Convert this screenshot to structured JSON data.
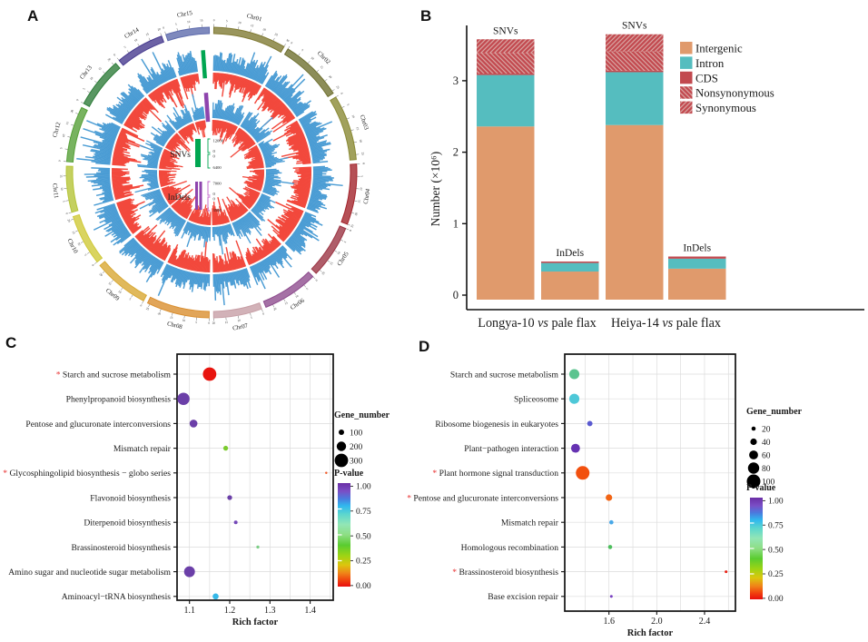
{
  "figure": {
    "panel_labels": {
      "a": "A",
      "b": "B",
      "c": "C",
      "d": "D"
    }
  },
  "chart_data": [
    {
      "id": "A",
      "type": "circos",
      "description": "Circular genome plot of SNV and InDel density across 15 flax chromosomes; outer blue histograms point outward, red histograms point inward, for SNVs (outer pair) and InDels (inner pair)",
      "chromosomes": [
        {
          "name": "Chr01",
          "size": 30,
          "color": "#807A33"
        },
        {
          "name": "Chr02",
          "size": 26,
          "color": "#6F7030"
        },
        {
          "name": "Chr03",
          "size": 27,
          "color": "#8A8A35"
        },
        {
          "name": "Chr04",
          "size": 25,
          "color": "#A3242C"
        },
        {
          "name": "Chr05",
          "size": 22,
          "color": "#9B3544"
        },
        {
          "name": "Chr06",
          "size": 23,
          "color": "#8E4D8E"
        },
        {
          "name": "Chr07",
          "size": 20,
          "color": "#C79FA6"
        },
        {
          "name": "Chr08",
          "size": 26,
          "color": "#D98E2F"
        },
        {
          "name": "Chr09",
          "size": 23,
          "color": "#D8A833"
        },
        {
          "name": "Chr10",
          "size": 21,
          "color": "#CFC938"
        },
        {
          "name": "Chr11",
          "size": 19,
          "color": "#B5C437"
        },
        {
          "name": "Chr12",
          "size": 23,
          "color": "#56A038"
        },
        {
          "name": "Chr13",
          "size": 21,
          "color": "#2F7D3B"
        },
        {
          "name": "Chr14",
          "size": 20,
          "color": "#473B8F"
        },
        {
          "name": "Chr15",
          "size": 18,
          "color": "#5E6BAD"
        }
      ],
      "track_colors": {
        "blue": "#4A9CD4",
        "red": "#F2483C"
      },
      "center_legend": {
        "snv": {
          "label": "SNVs",
          "color": "#00A651",
          "bracket_color": "#00A651",
          "scale_up": [
            "12000",
            "0"
          ],
          "scale_down": [
            "0",
            "6400"
          ]
        },
        "indel": {
          "label": "InDels",
          "color": "#8E44AD",
          "bracket_color": "#C060C8",
          "scale_up": [
            "7000",
            "0"
          ],
          "scale_down": [
            "0",
            "3500"
          ]
        }
      }
    },
    {
      "id": "B",
      "type": "bar",
      "stacked": true,
      "ylabel": "Number (×10⁶)",
      "yticks": [
        "0",
        "1",
        "2",
        "3"
      ],
      "ylim": [
        0,
        3.8
      ],
      "legend": [
        "Intergenic",
        "Intron",
        "CDS",
        "Nonsynonymous",
        "Synonymous"
      ],
      "colors": {
        "Intergenic": "#E09A6C",
        "Intron": "#55BDBF",
        "CDS": "#C2494F",
        "Nonsynonymous": "#C2494F",
        "Synonymous": "#C2494F"
      },
      "hatch": {
        "Nonsynonymous": "\\",
        "Synonymous": "/"
      },
      "group_labels": [
        "Longya-10 vs pale flax",
        "Heiya-14 vs pale flax"
      ],
      "bars": [
        {
          "label": "SNVs",
          "group": 0,
          "segments": [
            [
              "Intergenic",
              2.36
            ],
            [
              "Intron",
              0.72
            ],
            [
              "CDS",
              0.02
            ],
            [
              "Nonsynonymous",
              0.29
            ],
            [
              "Synonymous",
              0.19
            ]
          ]
        },
        {
          "label": "InDels",
          "group": 0,
          "segments": [
            [
              "Intergenic",
              0.33
            ],
            [
              "Intron",
              0.12
            ],
            [
              "CDS",
              0.02
            ]
          ]
        },
        {
          "label": "SNVs",
          "group": 1,
          "segments": [
            [
              "Intergenic",
              2.38
            ],
            [
              "Intron",
              0.74
            ],
            [
              "CDS",
              0.02
            ],
            [
              "Nonsynonymous",
              0.27
            ],
            [
              "Synonymous",
              0.24
            ]
          ]
        },
        {
          "label": "InDels",
          "group": 1,
          "segments": [
            [
              "Intergenic",
              0.37
            ],
            [
              "Intron",
              0.14
            ],
            [
              "CDS",
              0.03
            ]
          ]
        }
      ]
    },
    {
      "id": "C",
      "type": "scatter",
      "xlabel": "Rich factor",
      "xticks": [
        "1.1",
        "1.2",
        "1.3",
        "1.4"
      ],
      "xlim": [
        1.06,
        1.46
      ],
      "size_legend": {
        "title": "Gene_number",
        "items": [
          100,
          200,
          300
        ]
      },
      "color_legend": {
        "title": "P-value",
        "ticks": [
          "1.00",
          "0.75",
          "0.50",
          "0.25",
          "0.00"
        ]
      },
      "points": [
        {
          "pathway": "Starch and sucrose metabolism",
          "starred": true,
          "rich_factor": 1.15,
          "gene_number": 300,
          "p_value": 0.01,
          "color": "#E8140E"
        },
        {
          "pathway": "Phenylpropanoid biosynthesis",
          "starred": false,
          "rich_factor": 1.085,
          "gene_number": 270,
          "p_value": 1.0,
          "color": "#6B3FA8"
        },
        {
          "pathway": "Pentose and glucuronate interconversions",
          "starred": false,
          "rich_factor": 1.11,
          "gene_number": 160,
          "p_value": 0.95,
          "color": "#6B3FA8"
        },
        {
          "pathway": "Mismatch repair",
          "starred": false,
          "rich_factor": 1.19,
          "gene_number": 85,
          "p_value": 0.3,
          "color": "#7BCB2E"
        },
        {
          "pathway": "Glycosphingolipid biosynthesis − globo series",
          "starred": true,
          "rich_factor": 1.44,
          "gene_number": 20,
          "p_value": 0.05,
          "color": "#F05A28"
        },
        {
          "pathway": "Flavonoid biosynthesis",
          "starred": false,
          "rich_factor": 1.2,
          "gene_number": 85,
          "p_value": 0.9,
          "color": "#6B3FA8"
        },
        {
          "pathway": "Diterpenoid biosynthesis",
          "starred": false,
          "rich_factor": 1.215,
          "gene_number": 55,
          "p_value": 0.9,
          "color": "#7448B8"
        },
        {
          "pathway": "Brassinosteroid biosynthesis",
          "starred": false,
          "rich_factor": 1.27,
          "gene_number": 40,
          "p_value": 0.45,
          "color": "#7CCE87"
        },
        {
          "pathway": "Amino sugar and nucleotide sugar metabolism",
          "starred": false,
          "rich_factor": 1.1,
          "gene_number": 235,
          "p_value": 1.0,
          "color": "#6B3FA8"
        },
        {
          "pathway": "Aminoacyl−tRNA biosynthesis",
          "starred": false,
          "rich_factor": 1.165,
          "gene_number": 115,
          "p_value": 0.75,
          "color": "#35B8E8"
        }
      ]
    },
    {
      "id": "D",
      "type": "scatter",
      "xlabel": "Rich factor",
      "xticks": [
        "1.6",
        "2.0",
        "2.4"
      ],
      "xlim": [
        1.24,
        2.65
      ],
      "size_legend": {
        "title": "Gene_number",
        "items": [
          20,
          40,
          60,
          80,
          100
        ]
      },
      "color_legend": {
        "title": "P-value",
        "ticks": [
          "1.00",
          "0.75",
          "0.50",
          "0.25",
          "0.00"
        ]
      },
      "points": [
        {
          "pathway": "Starch and sucrose metabolism",
          "starred": false,
          "rich_factor": 1.31,
          "gene_number": 70,
          "p_value": 0.5,
          "color": "#5BC48F"
        },
        {
          "pathway": "Spliceosome",
          "starred": false,
          "rich_factor": 1.31,
          "gene_number": 70,
          "p_value": 0.7,
          "color": "#4EC8D8"
        },
        {
          "pathway": "Ribosome biogenesis in eukaryotes",
          "starred": false,
          "rich_factor": 1.44,
          "gene_number": 30,
          "p_value": 0.85,
          "color": "#5A5AD0"
        },
        {
          "pathway": "Plant−pathogen interaction",
          "starred": false,
          "rich_factor": 1.32,
          "gene_number": 60,
          "p_value": 0.95,
          "color": "#6632B2"
        },
        {
          "pathway": "Plant hormone signal transduction",
          "starred": true,
          "rich_factor": 1.38,
          "gene_number": 100,
          "p_value": 0.02,
          "color": "#F2500E"
        },
        {
          "pathway": "Pentose and glucuronate interconversions",
          "starred": true,
          "rich_factor": 1.6,
          "gene_number": 40,
          "p_value": 0.05,
          "color": "#F26414"
        },
        {
          "pathway": "Mismatch repair",
          "starred": false,
          "rich_factor": 1.62,
          "gene_number": 20,
          "p_value": 0.72,
          "color": "#48A8E8"
        },
        {
          "pathway": "Homologous recombination",
          "starred": false,
          "rich_factor": 1.61,
          "gene_number": 20,
          "p_value": 0.4,
          "color": "#4CBE5C"
        },
        {
          "pathway": "Brassinosteroid biosynthesis",
          "starred": true,
          "rich_factor": 2.58,
          "gene_number": 8,
          "p_value": 0.01,
          "color": "#E82014"
        },
        {
          "pathway": "Base excision repair",
          "starred": false,
          "rich_factor": 1.62,
          "gene_number": 8,
          "p_value": 0.98,
          "color": "#7840C0"
        }
      ]
    }
  ]
}
